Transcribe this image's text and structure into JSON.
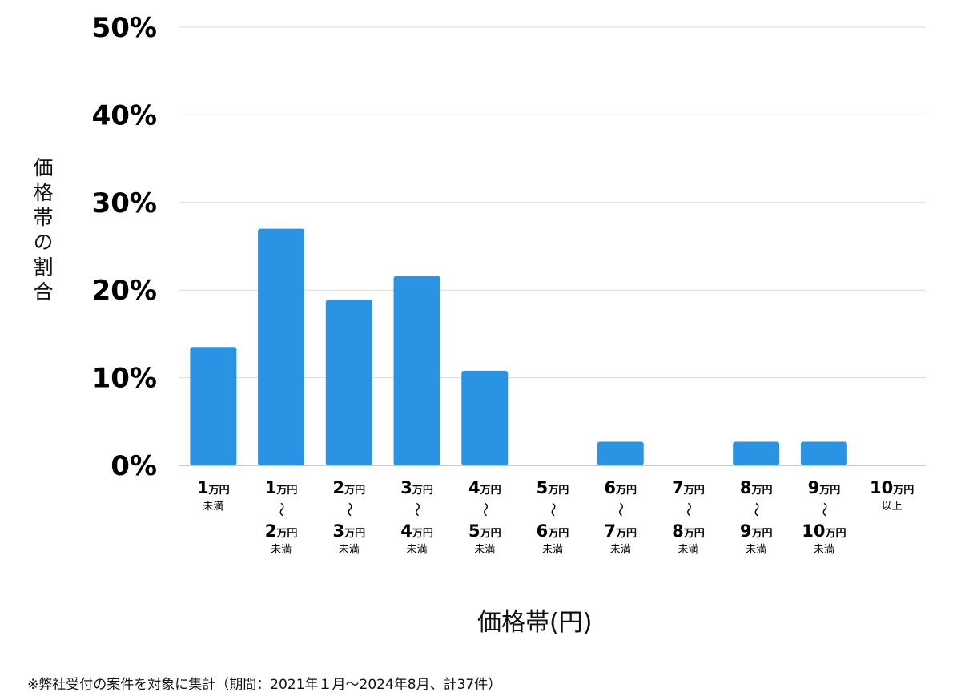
{
  "chart_data": {
    "type": "bar",
    "categories": [
      {
        "from": "1",
        "to": "",
        "unit": "万円",
        "suffix": "未満"
      },
      {
        "from": "1",
        "to": "2",
        "unit": "万円",
        "suffix": "未満"
      },
      {
        "from": "2",
        "to": "3",
        "unit": "万円",
        "suffix": "未満"
      },
      {
        "from": "3",
        "to": "4",
        "unit": "万円",
        "suffix": "未満"
      },
      {
        "from": "4",
        "to": "5",
        "unit": "万円",
        "suffix": "未満"
      },
      {
        "from": "5",
        "to": "6",
        "unit": "万円",
        "suffix": "未満"
      },
      {
        "from": "6",
        "to": "7",
        "unit": "万円",
        "suffix": "未満"
      },
      {
        "from": "7",
        "to": "8",
        "unit": "万円",
        "suffix": "未満"
      },
      {
        "from": "8",
        "to": "9",
        "unit": "万円",
        "suffix": "未満"
      },
      {
        "from": "9",
        "to": "10",
        "unit": "万円",
        "suffix": "未満"
      },
      {
        "from": "10",
        "to": "",
        "unit": "万円",
        "suffix": "以上"
      }
    ],
    "values": [
      13.5,
      27.0,
      18.9,
      21.6,
      10.8,
      0,
      2.7,
      0,
      2.7,
      2.7,
      0
    ],
    "ylim": [
      0,
      50
    ],
    "yticks": [
      "0%",
      "10%",
      "20%",
      "30%",
      "40%",
      "50%"
    ],
    "ylabel": "価格帯の割合",
    "xlabel": "価格帯(円)",
    "range_mark": "〜",
    "grid": true,
    "bar_color": "#2b93e4"
  },
  "footnote": "※弊社受付の案件を対象に集計（期間：2021年１月〜2024年8月、計37件）"
}
